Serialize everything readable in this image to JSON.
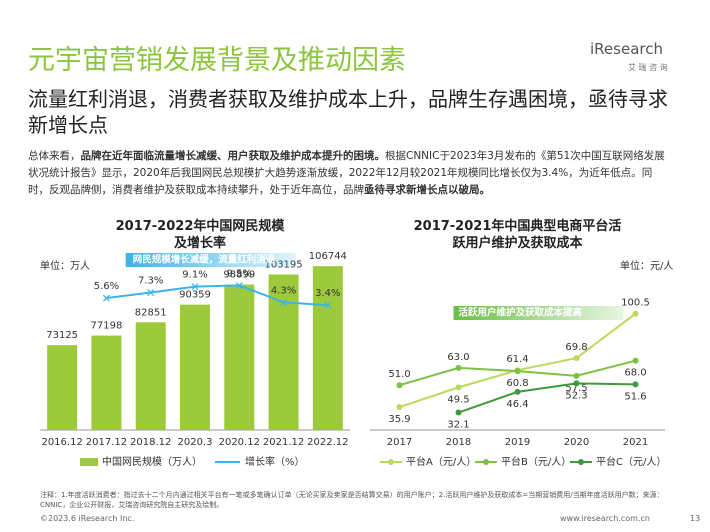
{
  "header": {
    "title": "元宇宙营销发展背景及推动因素",
    "subtitle": "流量红利消退，消费者获取及维护成本上升，品牌生存遇困境，亟待寻求新增长点",
    "logo": "iResearch",
    "logo_cn": "艾 瑞 咨 询"
  },
  "body": [
    {
      "text": "总体来看，",
      "bold": false
    },
    {
      "text": "品牌在近年面临流量增长减缓、用户获取及维护成本提升的困境。",
      "bold": true
    },
    {
      "text": "根据CNNIC于2023年3月发布的《第51次中国互联网络发展状况统计报告》显示，2020年后我国网民总规模扩大趋势逐渐放缓，2022年12月较2021年规模同比增长仅为3.4%，为近年低点。同时，反观品牌侧，消费者维护及获取成本持续攀升，处于近年高位，品牌",
      "bold": false
    },
    {
      "text": "亟待寻求新增长点以破局。",
      "bold": true
    }
  ],
  "chart_data": [
    {
      "type": "bar_line",
      "title": "2017-2022年中国网民规模及增长率",
      "unit": "单位：万人",
      "annotation": "网民规模增长减缓，流量红利消退",
      "categories": [
        "2016.12",
        "2017.12",
        "2018.12",
        "2020.3",
        "2020.12",
        "2021.12",
        "2022.12"
      ],
      "series": [
        {
          "name": "中国网民规模（万人）",
          "color": "#9dca3c",
          "values": [
            73125,
            77198,
            82851,
            90359,
            98899,
            103195,
            106744
          ]
        },
        {
          "name": "增长率（%）",
          "color": "#3bb4e6",
          "axis": "y2",
          "values": [
            null,
            5.6,
            7.3,
            9.1,
            9.5,
            4.3,
            3.4
          ],
          "value_labels": [
            null,
            "5.6%",
            "7.3%",
            "9.1%",
            "9.5%",
            "4.3%",
            "3.4%"
          ]
        }
      ],
      "ylim": [
        37000,
        120000
      ],
      "y2lim": [
        -35,
        25
      ]
    },
    {
      "type": "line",
      "title": "2017-2021年中国典型电商平台活跃用户维护及获取成本",
      "unit": "单位：元/人",
      "annotation": "活跃用户维护及获取成本提高",
      "categories": [
        "2017",
        "2018",
        "2019",
        "2020",
        "2021"
      ],
      "series": [
        {
          "name": "平台A（元/人）",
          "color": "#b8db5c",
          "values": [
            35.9,
            49.5,
            61.4,
            69.8,
            100.5
          ],
          "value_labels": [
            "35.9",
            "49.5",
            "61.4",
            "69.8",
            "100.5"
          ]
        },
        {
          "name": "平台B（元/人）",
          "color": "#7cc142",
          "values": [
            51.0,
            63.0,
            60.8,
            57.5,
            68.0
          ],
          "value_labels": [
            "51.0",
            "63.0",
            "60.8",
            "57.5",
            "68.0"
          ]
        },
        {
          "name": "平台C（元/人）",
          "color": "#3e9a3b",
          "values": [
            null,
            32.1,
            46.4,
            52.3,
            51.6
          ],
          "value_labels": [
            null,
            "32.1",
            "46.4",
            "52.3",
            "51.6"
          ]
        }
      ],
      "ylim": [
        20,
        110
      ]
    }
  ],
  "note": "注释：1.年度活跃消费者：指过去十二个月内通过相关平台有一笔或多笔确认订单（无论买家及卖家是否结算交易）的用户账户；2.活跃用户维护及获取成本=当期营销费用/当期年度活跃用户数；来源：CNNIC，企业公开财报，艾瑞咨询研究院自主研究及绘制。",
  "footer": {
    "copyright": "©2023.6 iResearch Inc.",
    "url": "www.iresearch.com.cn",
    "page": "13"
  }
}
